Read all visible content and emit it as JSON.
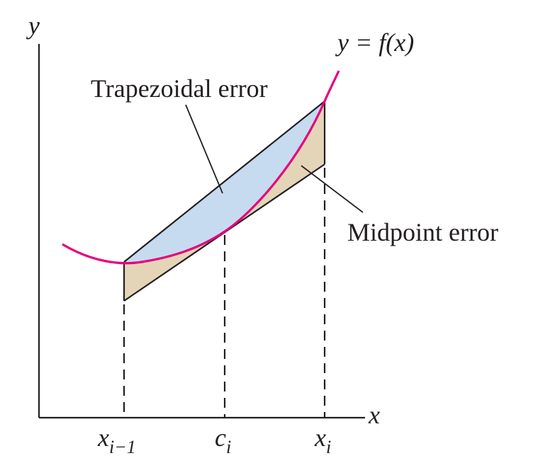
{
  "labels": {
    "y_axis": "y",
    "x_axis": "x",
    "curve": "y = f(x)",
    "trapezoidal": "Trapezoidal error",
    "midpoint": "Midpoint error"
  },
  "ticks": [
    {
      "base": "x",
      "sub": "i−1"
    },
    {
      "base": "c",
      "sub": "i"
    },
    {
      "base": "x",
      "sub": "i"
    }
  ],
  "colors": {
    "curve": "#e6007e",
    "trapezoidal_fill": "#c6dbef",
    "midpoint_fill": "#e5d5b8",
    "ink": "#231f20"
  }
}
